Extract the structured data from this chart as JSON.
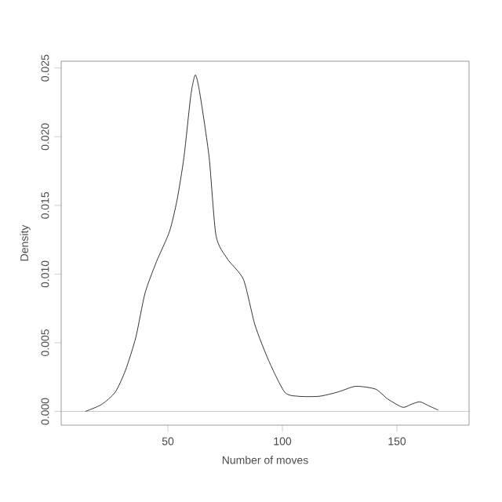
{
  "chart_data": {
    "type": "line",
    "xlabel": "Number of moves",
    "ylabel": "Density",
    "xlim": [
      3.4,
      181.5
    ],
    "ylim": [
      -0.001,
      0.0255
    ],
    "xticks": [
      50,
      100,
      150
    ],
    "yticks": [
      {
        "value": 0,
        "label": "0.000"
      },
      {
        "value": 0.005,
        "label": "0.005"
      },
      {
        "value": 0.01,
        "label": "0.010"
      },
      {
        "value": 0.015,
        "label": "0.015"
      },
      {
        "value": 0.02,
        "label": "0.020"
      },
      {
        "value": 0.025,
        "label": "0.025"
      }
    ],
    "series": [
      {
        "color": "#000000",
        "x": [
          14,
          21,
          27,
          31.5,
          36,
          40,
          45,
          50.7,
          54,
          57,
          60,
          62,
          64,
          68,
          71,
          76,
          83,
          88,
          94,
          101,
          107,
          116,
          124,
          131,
          135,
          141,
          146,
          152.5,
          156,
          160,
          164,
          168
        ],
        "values": [
          0,
          0.0005,
          0.0014,
          0.003,
          0.0054,
          0.0086,
          0.0109,
          0.0131,
          0.0154,
          0.0185,
          0.023,
          0.0245,
          0.0231,
          0.0185,
          0.0128,
          0.0111,
          0.0096,
          0.0063,
          0.0037,
          0.0014,
          0.0011,
          0.0011,
          0.0014,
          0.0018,
          0.0018,
          0.0016,
          0.0009,
          0.0003,
          0.0005,
          0.0007,
          0.0004,
          0.0001
        ]
      }
    ],
    "ref_lines": [
      {
        "axis": "y",
        "value": 0,
        "color": "#bebebe"
      }
    ],
    "grid": false
  }
}
